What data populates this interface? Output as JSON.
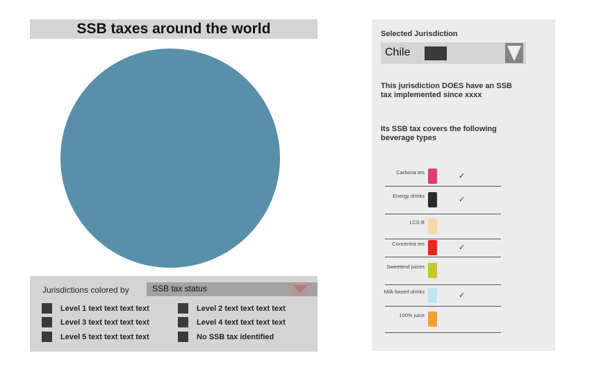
{
  "title": "SSB taxes around the world",
  "legend": {
    "colored_by_label": "Jurisdictions colored by",
    "colored_by_value": "SSB tax status",
    "items": [
      "Level 1 text text text text",
      "Level 2 text text text text",
      "Level 3 text text text text",
      "Level 4 text text text text",
      "Level 5 text text text text",
      "No SSB tax identified"
    ]
  },
  "panel": {
    "selected_label": "Selected Jurisdiction",
    "selected_value": "Chile",
    "status_text": "This jurisdiction DOES have an SSB tax implemented since xxxx",
    "covers_text": "Its SSB tax covers the following beverage types",
    "check_mark": "✓",
    "beverages": [
      {
        "label": "Carbona tes",
        "covered": true,
        "color": "#e03a7a"
      },
      {
        "label": "Energy drinks",
        "covered": true,
        "color": "#2b2b2b"
      },
      {
        "label": "LCS B",
        "covered": false,
        "color": "#f8d8a8"
      },
      {
        "label": "Concentra tes",
        "covered": true,
        "color": "#e02a20"
      },
      {
        "label": "Sweetend juices",
        "covered": false,
        "color": "#c6c830"
      },
      {
        "label": "Milk-based drinks",
        "covered": true,
        "color": "#bfe4f2"
      },
      {
        "label": "100% juice",
        "covered": false,
        "color": "#f4a030"
      }
    ]
  }
}
